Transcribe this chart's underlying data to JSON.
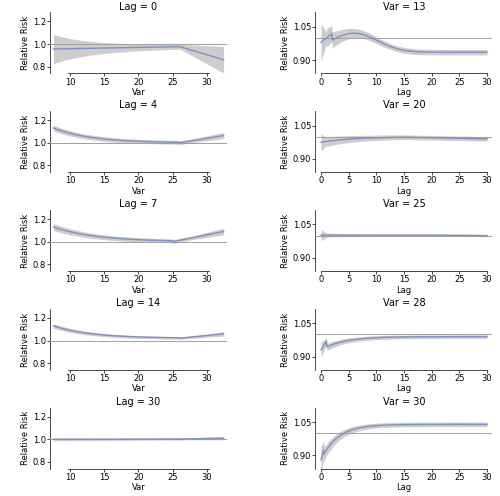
{
  "left_panels": [
    {
      "title": "Lag = 0",
      "xlabel": "Var",
      "ylabel": "Relative Risk",
      "xlim": [
        7,
        33
      ],
      "ylim": [
        0.74,
        1.28
      ],
      "yticks": [
        0.8,
        1.0,
        1.2
      ],
      "xticks": [
        10,
        15,
        20,
        25,
        30
      ]
    },
    {
      "title": "Lag = 4",
      "xlabel": "Var",
      "ylabel": "Relative Risk",
      "xlim": [
        7,
        33
      ],
      "ylim": [
        0.74,
        1.28
      ],
      "yticks": [
        0.8,
        1.0,
        1.2
      ],
      "xticks": [
        10,
        15,
        20,
        25,
        30
      ]
    },
    {
      "title": "Lag = 7",
      "xlabel": "Var",
      "ylabel": "Relative Risk",
      "xlim": [
        7,
        33
      ],
      "ylim": [
        0.74,
        1.28
      ],
      "yticks": [
        0.8,
        1.0,
        1.2
      ],
      "xticks": [
        10,
        15,
        20,
        25,
        30
      ]
    },
    {
      "title": "Lag = 14",
      "xlabel": "Var",
      "ylabel": "Relative Risk",
      "xlim": [
        7,
        33
      ],
      "ylim": [
        0.74,
        1.28
      ],
      "yticks": [
        0.8,
        1.0,
        1.2
      ],
      "xticks": [
        10,
        15,
        20,
        25,
        30
      ]
    },
    {
      "title": "Lag = 30",
      "xlabel": "Var",
      "ylabel": "Relative Risk",
      "xlim": [
        7,
        33
      ],
      "ylim": [
        0.74,
        1.28
      ],
      "yticks": [
        0.8,
        1.0,
        1.2
      ],
      "xticks": [
        10,
        15,
        20,
        25,
        30
      ]
    }
  ],
  "right_panels": [
    {
      "title": "Var = 13",
      "xlabel": "Lag",
      "ylabel": "Relative Risk",
      "xlim": [
        -1,
        31
      ],
      "ylim": [
        0.84,
        1.115
      ],
      "yticks": [
        0.9,
        1.05
      ],
      "xticks": [
        0,
        5,
        10,
        15,
        20,
        25,
        30
      ]
    },
    {
      "title": "Var = 20",
      "xlabel": "Lag",
      "ylabel": "Relative Risk",
      "xlim": [
        -1,
        31
      ],
      "ylim": [
        0.84,
        1.115
      ],
      "yticks": [
        0.9,
        1.05
      ],
      "xticks": [
        0,
        5,
        10,
        15,
        20,
        25,
        30
      ]
    },
    {
      "title": "Var = 25",
      "xlabel": "Lag",
      "ylabel": "Relative Risk",
      "xlim": [
        -1,
        31
      ],
      "ylim": [
        0.84,
        1.115
      ],
      "yticks": [
        0.9,
        1.05
      ],
      "xticks": [
        0,
        5,
        10,
        15,
        20,
        25,
        30
      ]
    },
    {
      "title": "Var = 28",
      "xlabel": "Lag",
      "ylabel": "Relative Risk",
      "xlim": [
        -1,
        31
      ],
      "ylim": [
        0.84,
        1.115
      ],
      "yticks": [
        0.9,
        1.05
      ],
      "xticks": [
        0,
        5,
        10,
        15,
        20,
        25,
        30
      ]
    },
    {
      "title": "Var = 30",
      "xlabel": "Lag",
      "ylabel": "Relative Risk",
      "xlim": [
        -1,
        31
      ],
      "ylim": [
        0.84,
        1.115
      ],
      "yticks": [
        0.9,
        1.05
      ],
      "xticks": [
        0,
        5,
        10,
        15,
        20,
        25,
        30
      ]
    }
  ],
  "line_color": "#8090bf",
  "ci_color": "#c8c8c8",
  "ref_color": "#a0a0a0",
  "ref_lw": 0.7,
  "line_lw": 1.0,
  "background_color": "#ffffff"
}
